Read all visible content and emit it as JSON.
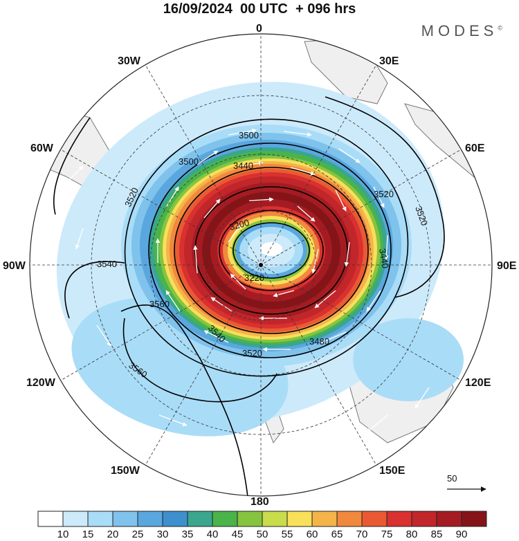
{
  "header": {
    "title": "16/09/2024  00 UTC  + 096 hrs",
    "brand": "MODES",
    "brand_mark": "©"
  },
  "longitude_labels": {
    "n": "0",
    "ne": "30E",
    "e_upper": "60E",
    "e": "90E",
    "se_upper": "120E",
    "se": "150E",
    "s": "180",
    "sw": "150W",
    "sw_upper": "120W",
    "w": "90W",
    "nw_upper": "60W",
    "nw": "30W"
  },
  "contour_labels": [
    "3500",
    "3440",
    "3520",
    "3520",
    "3500",
    "3540",
    "3560",
    "3540",
    "3520",
    "3480",
    "3560",
    "3220",
    "3200",
    "3440",
    "3520"
  ],
  "colorbar": {
    "ticks": [
      "10",
      "15",
      "20",
      "25",
      "30",
      "35",
      "40",
      "45",
      "50",
      "55",
      "60",
      "65",
      "70",
      "75",
      "80",
      "85",
      "90"
    ],
    "colors": [
      "#ffffff",
      "#cdeafb",
      "#a9dcf7",
      "#7fc2ec",
      "#5aa7df",
      "#3e8fce",
      "#3aa68e",
      "#4ab34a",
      "#86c440",
      "#c8dc4c",
      "#f8e05a",
      "#f4b44a",
      "#f1893c",
      "#e95a34",
      "#d93030",
      "#c0262a",
      "#a41c22",
      "#851418"
    ]
  },
  "vector_scale": {
    "label": "50"
  },
  "colors": {
    "land": "#efefef",
    "coast": "#777777",
    "contour": "#000000",
    "grid": "#333333"
  }
}
